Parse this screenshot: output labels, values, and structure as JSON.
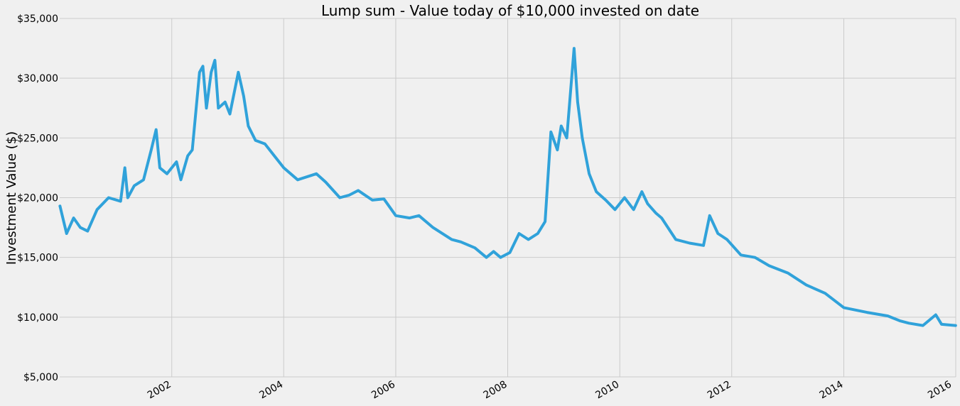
{
  "chart_data": {
    "type": "line",
    "title": "Lump sum - Value today of $10,000 invested on date",
    "xlabel": "",
    "ylabel": "Investment Value ($)",
    "ylim": [
      5000,
      35000
    ],
    "xlim": [
      "2000-01-01",
      "2016-01-01"
    ],
    "y_ticks": [
      5000,
      10000,
      15000,
      20000,
      25000,
      30000,
      35000
    ],
    "y_tick_labels": [
      "$5,000",
      "$10,000",
      "$15,000",
      "$20,000",
      "$25,000",
      "$30,000",
      "$35,000"
    ],
    "x_ticks": [
      "2002-01-01",
      "2004-01-01",
      "2006-01-01",
      "2008-01-01",
      "2010-01-01",
      "2012-01-01",
      "2014-01-01",
      "2016-01-01"
    ],
    "x_tick_labels": [
      "2002",
      "2004",
      "2006",
      "2008",
      "2010",
      "2012",
      "2014",
      "2016"
    ],
    "grid": true,
    "legend": "none",
    "series": [
      {
        "color": "#30a2da",
        "x": [
          "2000-01-03",
          "2000-02-15",
          "2000-04-01",
          "2000-05-15",
          "2000-07-01",
          "2000-09-01",
          "2000-11-15",
          "2001-02-01",
          "2001-03-01",
          "2001-03-20",
          "2001-05-01",
          "2001-07-01",
          "2001-08-20",
          "2001-09-21",
          "2001-10-15",
          "2001-12-01",
          "2002-02-01",
          "2002-03-01",
          "2002-04-15",
          "2002-05-15",
          "2002-07-01",
          "2002-07-23",
          "2002-08-15",
          "2002-09-15",
          "2002-10-09",
          "2002-11-01",
          "2002-12-15",
          "2003-01-15",
          "2003-03-11",
          "2003-04-15",
          "2003-05-15",
          "2003-07-01",
          "2003-09-01",
          "2003-11-01",
          "2004-01-01",
          "2004-04-01",
          "2004-08-01",
          "2004-10-01",
          "2005-01-01",
          "2005-03-01",
          "2005-05-01",
          "2005-08-01",
          "2005-10-15",
          "2006-01-01",
          "2006-04-01",
          "2006-06-01",
          "2006-09-01",
          "2007-01-01",
          "2007-03-01",
          "2007-06-01",
          "2007-08-15",
          "2007-10-01",
          "2007-11-15",
          "2008-01-15",
          "2008-03-15",
          "2008-05-15",
          "2008-07-15",
          "2008-09-01",
          "2008-10-09",
          "2008-11-20",
          "2008-12-15",
          "2009-01-20",
          "2009-03-09",
          "2009-04-01",
          "2009-05-01",
          "2009-06-15",
          "2009-08-01",
          "2009-10-01",
          "2009-12-01",
          "2010-02-01",
          "2010-04-01",
          "2010-05-25",
          "2010-07-01",
          "2010-08-25",
          "2010-10-01",
          "2011-01-01",
          "2011-04-01",
          "2011-07-01",
          "2011-08-10",
          "2011-10-03",
          "2011-12-01",
          "2012-03-01",
          "2012-06-01",
          "2012-09-01",
          "2013-01-01",
          "2013-05-01",
          "2013-09-01",
          "2014-01-01",
          "2014-06-01",
          "2014-10-15",
          "2015-01-01",
          "2015-03-01",
          "2015-06-01",
          "2015-08-24",
          "2015-10-01",
          "2015-12-31"
        ],
        "values": [
          19300,
          17000,
          18300,
          17500,
          17200,
          19000,
          20000,
          19700,
          22500,
          20000,
          21000,
          21500,
          24000,
          25700,
          22500,
          22000,
          23000,
          21500,
          23500,
          24000,
          30500,
          31000,
          27500,
          30500,
          31500,
          27500,
          28000,
          27000,
          30500,
          28500,
          26000,
          24800,
          24500,
          23500,
          22500,
          21500,
          22000,
          21300,
          20000,
          20200,
          20600,
          19800,
          19900,
          18500,
          18300,
          18500,
          17500,
          16500,
          16300,
          15800,
          15000,
          15500,
          15000,
          15400,
          17000,
          16500,
          17000,
          18000,
          25500,
          24000,
          26000,
          25000,
          32500,
          28000,
          25000,
          22000,
          20500,
          19800,
          19000,
          20000,
          19000,
          20500,
          19500,
          18700,
          18300,
          16500,
          16200,
          16000,
          18500,
          17000,
          16500,
          15200,
          15000,
          14300,
          13700,
          12700,
          12000,
          10800,
          10400,
          10100,
          9700,
          9500,
          9300,
          10200,
          9400,
          9300
        ]
      }
    ]
  }
}
